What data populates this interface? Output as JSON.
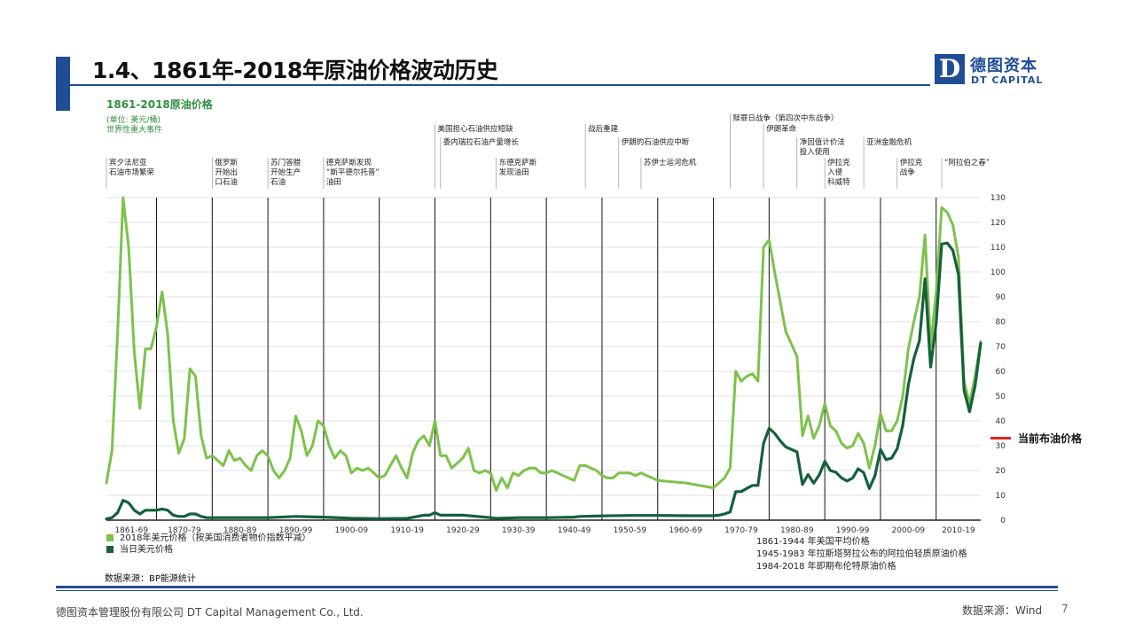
{
  "slide": {
    "title": "1.4、1861年-2018年原油价格波动历史",
    "logo_mark": "D",
    "logo_cn": "德图资本",
    "logo_en": "DT CAPITAL",
    "current_price_label": "当前布油价格",
    "source_note": "数据来源：BP能源统计",
    "footer_left": "德图资本管理股份有限公司  DT Capital  Management  Co., Ltd.",
    "footer_right": "数据来源：Wind",
    "page_number": "7"
  },
  "colors": {
    "brand_blue": "#1f4e96",
    "series_light": "#7dc24b",
    "series_dark": "#14603a",
    "chart_title": "#2f8f3f",
    "marker_red": "#e0241b"
  },
  "chart_data": {
    "type": "line",
    "title": "1861-2018原油价格",
    "subtitle": "(单位: 美元/桶)",
    "events_label": "世界性重大事件",
    "ylim": [
      0,
      130
    ],
    "yticks": [
      0,
      10,
      20,
      30,
      40,
      50,
      60,
      70,
      80,
      90,
      100,
      110,
      120,
      130
    ],
    "xlim": [
      1861,
      2018
    ],
    "decade_labels": [
      "1861-69",
      "1870-79",
      "1880-89",
      "1890-99",
      "1900-09",
      "1910-19",
      "1920-29",
      "1930-39",
      "1940-49",
      "1950-59",
      "1960-69",
      "1970-79",
      "1980-89",
      "1990-99",
      "2000-09",
      "2010-19"
    ],
    "decade_starts": [
      1861,
      1870,
      1880,
      1890,
      1900,
      1910,
      1920,
      1930,
      1940,
      1950,
      1960,
      1970,
      1980,
      1990,
      2000,
      2010
    ],
    "grid": true,
    "legend": [
      "2018年美元价格（按美国消费者物价指数平减）",
      "当日美元价格"
    ],
    "notes": [
      "1861-1944 年美国平均价格",
      "1945-1983 年拉斯塔努拉公布的阿拉伯轻质原油价格",
      "1984-2018 年即期布伦特原油价格"
    ],
    "events": [
      {
        "year": 1861,
        "lines": [
          "宾夕法尼亚",
          "石油市场繁荣"
        ],
        "row": 0
      },
      {
        "year": 1880,
        "lines": [
          "俄罗斯",
          "开始出",
          "口石油"
        ],
        "row": 0
      },
      {
        "year": 1890,
        "lines": [
          "苏门答腊",
          "开始生产",
          "石油"
        ],
        "row": 0
      },
      {
        "year": 1900,
        "lines": [
          "德克萨斯发现",
          "“斯平德尔托普”",
          "油田"
        ],
        "row": 0
      },
      {
        "year": 1920,
        "lines": [
          "美国担心石油供应短缺"
        ],
        "row": 2
      },
      {
        "year": 1921,
        "lines": [
          "委内瑞拉石油产量增长"
        ],
        "row": 1
      },
      {
        "year": 1931,
        "lines": [
          "东德克萨斯",
          "发现油田"
        ],
        "row": 0
      },
      {
        "year": 1947,
        "lines": [
          "战后重建"
        ],
        "row": 2
      },
      {
        "year": 1953,
        "lines": [
          "伊朗的石油供应中断"
        ],
        "row": 1
      },
      {
        "year": 1957,
        "lines": [
          "苏伊士运河危机"
        ],
        "row": 0
      },
      {
        "year": 1973,
        "lines": [
          "赎罪日战争（第四次中东战争）"
        ],
        "row": 3
      },
      {
        "year": 1979,
        "lines": [
          "伊朗革命"
        ],
        "row": 2
      },
      {
        "year": 1985,
        "lines": [
          "净回值计价法",
          "投入使用"
        ],
        "row": 1
      },
      {
        "year": 1990,
        "lines": [
          "伊拉克",
          "入侵",
          "科威特"
        ],
        "row": 0
      },
      {
        "year": 1997,
        "lines": [
          "亚洲金融危机"
        ],
        "row": 1
      },
      {
        "year": 2003,
        "lines": [
          "伊拉克",
          "战争"
        ],
        "row": 0
      },
      {
        "year": 2011,
        "lines": [
          "“阿拉伯之春”"
        ],
        "row": 0
      }
    ],
    "series": [
      {
        "name": "2018年美元价格（按美国消费者物价指数平减）",
        "color": "#7dc24b",
        "points": [
          [
            1861,
            15
          ],
          [
            1862,
            28
          ],
          [
            1863,
            75
          ],
          [
            1864,
            130
          ],
          [
            1865,
            110
          ],
          [
            1866,
            68
          ],
          [
            1867,
            45
          ],
          [
            1868,
            69
          ],
          [
            1869,
            69
          ],
          [
            1870,
            78
          ],
          [
            1871,
            92
          ],
          [
            1872,
            75
          ],
          [
            1873,
            40
          ],
          [
            1874,
            27
          ],
          [
            1875,
            33
          ],
          [
            1876,
            61
          ],
          [
            1877,
            58
          ],
          [
            1878,
            34
          ],
          [
            1879,
            25
          ],
          [
            1880,
            26
          ],
          [
            1881,
            24
          ],
          [
            1882,
            22
          ],
          [
            1883,
            28
          ],
          [
            1884,
            24
          ],
          [
            1885,
            25
          ],
          [
            1886,
            22
          ],
          [
            1887,
            20
          ],
          [
            1888,
            26
          ],
          [
            1889,
            28
          ],
          [
            1890,
            26
          ],
          [
            1891,
            20
          ],
          [
            1892,
            17
          ],
          [
            1893,
            20
          ],
          [
            1894,
            25
          ],
          [
            1895,
            42
          ],
          [
            1896,
            36
          ],
          [
            1897,
            26
          ],
          [
            1898,
            30
          ],
          [
            1899,
            40
          ],
          [
            1900,
            38
          ],
          [
            1901,
            30
          ],
          [
            1902,
            25
          ],
          [
            1903,
            28
          ],
          [
            1904,
            26
          ],
          [
            1905,
            19
          ],
          [
            1906,
            21
          ],
          [
            1907,
            20
          ],
          [
            1908,
            21
          ],
          [
            1909,
            19
          ],
          [
            1910,
            17
          ],
          [
            1911,
            18
          ],
          [
            1912,
            22
          ],
          [
            1913,
            26
          ],
          [
            1914,
            21
          ],
          [
            1915,
            17
          ],
          [
            1916,
            27
          ],
          [
            1917,
            32
          ],
          [
            1918,
            34
          ],
          [
            1919,
            30
          ],
          [
            1920,
            40
          ],
          [
            1921,
            26
          ],
          [
            1922,
            26
          ],
          [
            1923,
            21
          ],
          [
            1924,
            23
          ],
          [
            1925,
            25
          ],
          [
            1926,
            29
          ],
          [
            1927,
            20
          ],
          [
            1928,
            19
          ],
          [
            1929,
            20
          ],
          [
            1930,
            19
          ],
          [
            1931,
            12
          ],
          [
            1932,
            17
          ],
          [
            1933,
            13
          ],
          [
            1934,
            19
          ],
          [
            1935,
            18
          ],
          [
            1936,
            20
          ],
          [
            1937,
            21
          ],
          [
            1938,
            21
          ],
          [
            1939,
            19
          ],
          [
            1940,
            19
          ],
          [
            1941,
            20
          ],
          [
            1942,
            19
          ],
          [
            1943,
            18
          ],
          [
            1944,
            17
          ],
          [
            1945,
            16
          ],
          [
            1946,
            22
          ],
          [
            1947,
            22
          ],
          [
            1948,
            21
          ],
          [
            1949,
            20
          ],
          [
            1950,
            18
          ],
          [
            1951,
            17
          ],
          [
            1952,
            17
          ],
          [
            1953,
            19
          ],
          [
            1954,
            19
          ],
          [
            1955,
            19
          ],
          [
            1956,
            18
          ],
          [
            1957,
            19
          ],
          [
            1958,
            18
          ],
          [
            1959,
            17
          ],
          [
            1960,
            16
          ],
          [
            1965,
            15
          ],
          [
            1970,
            13
          ],
          [
            1971,
            15
          ],
          [
            1972,
            17
          ],
          [
            1973,
            21
          ],
          [
            1974,
            60
          ],
          [
            1975,
            56
          ],
          [
            1976,
            58
          ],
          [
            1977,
            59
          ],
          [
            1978,
            56
          ],
          [
            1979,
            110
          ],
          [
            1980,
            113
          ],
          [
            1981,
            100
          ],
          [
            1982,
            88
          ],
          [
            1983,
            76
          ],
          [
            1984,
            71
          ],
          [
            1985,
            66
          ],
          [
            1986,
            34
          ],
          [
            1987,
            42
          ],
          [
            1988,
            33
          ],
          [
            1989,
            38
          ],
          [
            1990,
            47
          ],
          [
            1991,
            38
          ],
          [
            1992,
            36
          ],
          [
            1993,
            31
          ],
          [
            1994,
            29
          ],
          [
            1995,
            30
          ],
          [
            1996,
            35
          ],
          [
            1997,
            31
          ],
          [
            1998,
            21
          ],
          [
            1999,
            30
          ],
          [
            2000,
            43
          ],
          [
            2001,
            36
          ],
          [
            2002,
            36
          ],
          [
            2003,
            40
          ],
          [
            2004,
            50
          ],
          [
            2005,
            69
          ],
          [
            2006,
            80
          ],
          [
            2007,
            90
          ],
          [
            2008,
            115
          ],
          [
            2009,
            70
          ],
          [
            2010,
            92
          ],
          [
            2011,
            126
          ],
          [
            2012,
            124
          ],
          [
            2013,
            119
          ],
          [
            2014,
            106
          ],
          [
            2015,
            56
          ],
          [
            2016,
            47
          ],
          [
            2017,
            58
          ],
          [
            2018,
            72
          ]
        ]
      },
      {
        "name": "当日美元价格",
        "color": "#14603a",
        "points": [
          [
            1861,
            0.5
          ],
          [
            1862,
            1
          ],
          [
            1863,
            3
          ],
          [
            1864,
            8
          ],
          [
            1865,
            7
          ],
          [
            1866,
            4
          ],
          [
            1867,
            2.5
          ],
          [
            1868,
            4
          ],
          [
            1869,
            4
          ],
          [
            1870,
            4
          ],
          [
            1871,
            4.5
          ],
          [
            1872,
            4
          ],
          [
            1873,
            2
          ],
          [
            1874,
            1.5
          ],
          [
            1875,
            1.5
          ],
          [
            1876,
            2.5
          ],
          [
            1877,
            2.5
          ],
          [
            1878,
            1.5
          ],
          [
            1879,
            1
          ],
          [
            1880,
            1
          ],
          [
            1885,
            1
          ],
          [
            1890,
            1
          ],
          [
            1895,
            1.5
          ],
          [
            1900,
            1.2
          ],
          [
            1905,
            0.8
          ],
          [
            1910,
            0.6
          ],
          [
            1915,
            0.7
          ],
          [
            1918,
            2
          ],
          [
            1919,
            2
          ],
          [
            1920,
            3
          ],
          [
            1921,
            2
          ],
          [
            1925,
            2
          ],
          [
            1930,
            1
          ],
          [
            1931,
            0.7
          ],
          [
            1935,
            1
          ],
          [
            1940,
            1
          ],
          [
            1945,
            1.2
          ],
          [
            1946,
            1.5
          ],
          [
            1950,
            1.7
          ],
          [
            1955,
            1.9
          ],
          [
            1960,
            1.9
          ],
          [
            1965,
            1.8
          ],
          [
            1970,
            1.8
          ],
          [
            1971,
            2
          ],
          [
            1972,
            2.5
          ],
          [
            1973,
            3.3
          ],
          [
            1974,
            11.5
          ],
          [
            1975,
            11.5
          ],
          [
            1976,
            12.8
          ],
          [
            1977,
            14
          ],
          [
            1978,
            14
          ],
          [
            1979,
            31
          ],
          [
            1980,
            37
          ],
          [
            1981,
            35
          ],
          [
            1982,
            32
          ],
          [
            1983,
            29.5
          ],
          [
            1984,
            28.5
          ],
          [
            1985,
            27.5
          ],
          [
            1986,
            14.4
          ],
          [
            1987,
            18.4
          ],
          [
            1988,
            14.9
          ],
          [
            1989,
            18.2
          ],
          [
            1990,
            23.7
          ],
          [
            1991,
            20
          ],
          [
            1992,
            19.3
          ],
          [
            1993,
            17
          ],
          [
            1994,
            15.8
          ],
          [
            1995,
            17
          ],
          [
            1996,
            20.7
          ],
          [
            1997,
            19.1
          ],
          [
            1998,
            12.7
          ],
          [
            1999,
            17.9
          ],
          [
            2000,
            28.5
          ],
          [
            2001,
            24.4
          ],
          [
            2002,
            25
          ],
          [
            2003,
            28.8
          ],
          [
            2004,
            38.3
          ],
          [
            2005,
            54.5
          ],
          [
            2006,
            65.1
          ],
          [
            2007,
            72.4
          ],
          [
            2008,
            97.3
          ],
          [
            2009,
            61.7
          ],
          [
            2010,
            79.5
          ],
          [
            2011,
            111.3
          ],
          [
            2012,
            111.7
          ],
          [
            2013,
            108.7
          ],
          [
            2014,
            99
          ],
          [
            2015,
            52.4
          ],
          [
            2016,
            43.7
          ],
          [
            2017,
            54.2
          ],
          [
            2018,
            71.3
          ]
        ]
      }
    ]
  }
}
